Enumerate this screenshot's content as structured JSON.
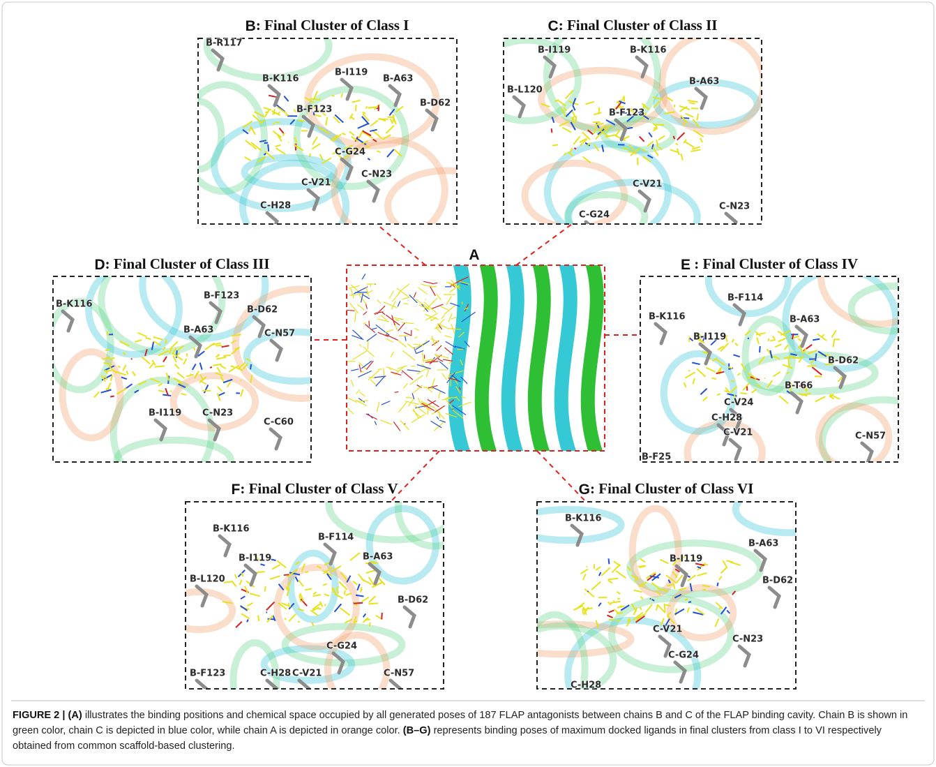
{
  "panels": [
    {
      "letter": "A",
      "title": null,
      "residues": []
    },
    {
      "letter": "B",
      "title": ": Final Cluster of Class I",
      "residues": [
        "B-R117",
        "B-K116",
        "B-I119",
        "B-A63",
        "B-D62",
        "B-F123",
        "C-G24",
        "C-N23",
        "C-V21",
        "C-H28"
      ]
    },
    {
      "letter": "C",
      "title": ": Final Cluster of Class II",
      "residues": [
        "B-I119",
        "B-K116",
        "B-L120",
        "B-A63",
        "B-F123",
        "C-V21",
        "C-N23",
        "C-G24"
      ]
    },
    {
      "letter": "D",
      "title": ": Final Cluster of Class III",
      "residues": [
        "B-K116",
        "B-F123",
        "B-D62",
        "B-A63",
        "C-N57",
        "B-I119",
        "C-N23",
        "C-C60"
      ]
    },
    {
      "letter": "E",
      "title": " : Final Cluster of Class IV",
      "residues": [
        "B-F114",
        "B-K116",
        "B-A63",
        "B-I119",
        "B-D62",
        "B-T66",
        "C-V24",
        "C-H28",
        "C-N57",
        "C-V21",
        "B-F25"
      ]
    },
    {
      "letter": "F",
      "title": ": Final Cluster of Class V",
      "residues": [
        "B-K116",
        "B-F114",
        "B-I119",
        "B-A63",
        "B-L120",
        "B-D62",
        "C-G24",
        "B-F123",
        "C-H28",
        "C-V21",
        "C-N57"
      ]
    },
    {
      "letter": "G",
      "title": ": Final Cluster of Class VI",
      "residues": [
        "B-K116",
        "B-I119",
        "B-A63",
        "B-D62",
        "C-V21",
        "C-N23",
        "C-G24",
        "C-H28"
      ]
    }
  ],
  "caption": [
    {
      "text": "FIGURE 2 | (A)",
      "bold": true
    },
    {
      "text": " illustrates the binding positions and chemical space occupied by all generated poses of 187 FLAP antagonists between chains B and C of the FLAP binding cavity. Chain B is shown in green color, chain C is depicted in blue color, while chain A is depicted in orange color. ",
      "bold": false
    },
    {
      "text": "(B–G)",
      "bold": true
    },
    {
      "text": " represents binding poses of maximum docked ligands in final clusters from class I to VI respectively obtained from common scaffold-based clustering.",
      "bold": false
    }
  ]
}
